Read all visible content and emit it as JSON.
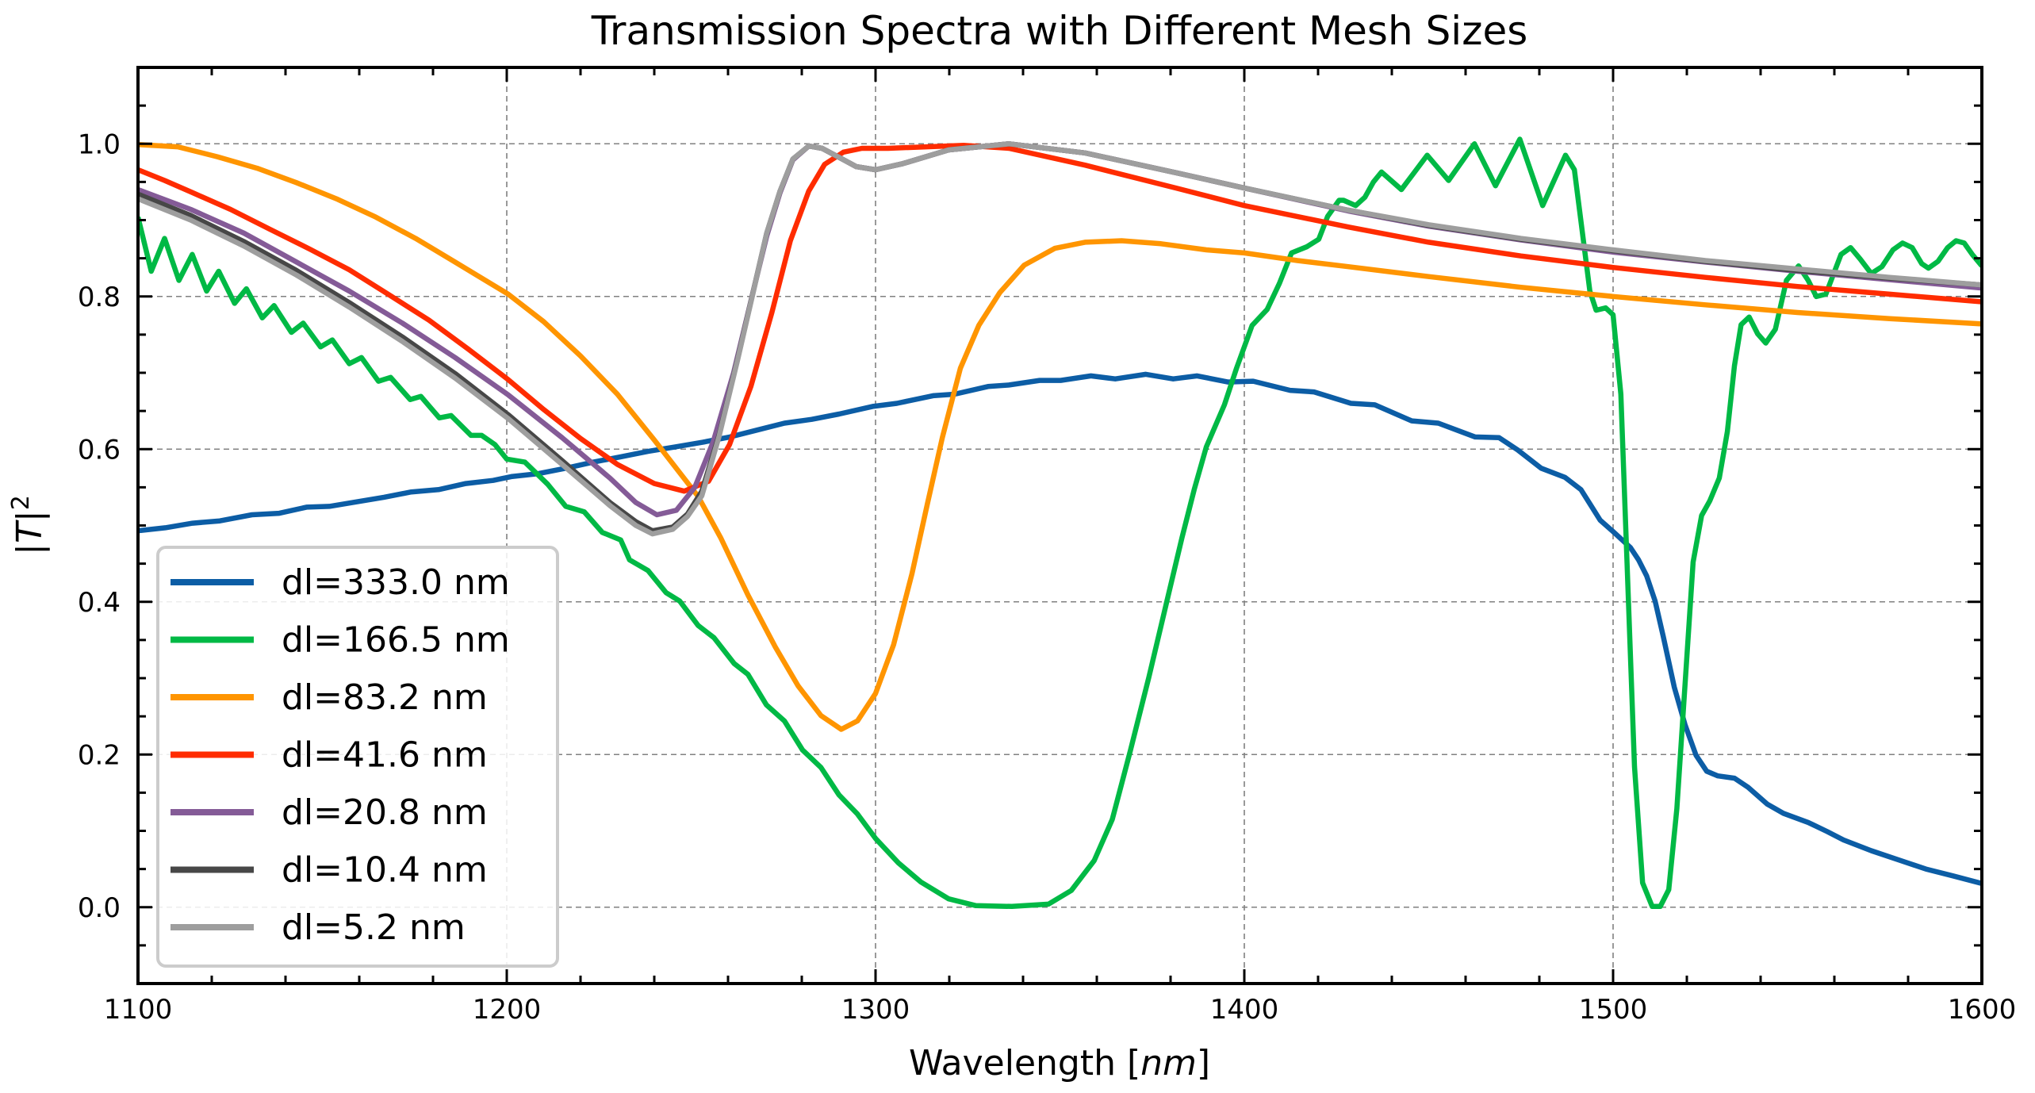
{
  "chart_data": {
    "type": "line",
    "title": "Transmission Spectra with Different Mesh Sizes",
    "xlabel": "Wavelength [nm]",
    "xlabel_parts": {
      "prefix": "Wavelength [",
      "italic": "nm",
      "suffix": "]"
    },
    "ylabel": "|T|^2",
    "ylabel_parts": {
      "bar_left": "|",
      "italic": "T",
      "bar_right": "|",
      "superscript": "2"
    },
    "xlim": [
      1100,
      1600
    ],
    "ylim": [
      -0.1,
      1.1
    ],
    "xticks": [
      1100,
      1200,
      1300,
      1400,
      1500,
      1600
    ],
    "xtick_labels": [
      "1100",
      "1200",
      "1300",
      "1400",
      "1500",
      "1600"
    ],
    "yticks": [
      0.0,
      0.2,
      0.4,
      0.6,
      0.8,
      1.0
    ],
    "ytick_labels": [
      "0.0",
      "0.2",
      "0.4",
      "0.6",
      "0.8",
      "1.0"
    ],
    "x_minor_step": 20,
    "y_minor_step": 0.05,
    "grid": true,
    "legend_position": "lower-left",
    "series": [
      {
        "name": "dl=333.0 nm",
        "color": "#0C5DA5",
        "x": [
          1100,
          1107.4,
          1114.8,
          1122.2,
          1130.9,
          1138.3,
          1145.7,
          1151.9,
          1159.3,
          1166.7,
          1174.1,
          1181.5,
          1188.9,
          1196.3,
          1201.2,
          1208.6,
          1216,
          1223.5,
          1230.9,
          1238.3,
          1245.7,
          1253.1,
          1260.5,
          1267.9,
          1275.3,
          1282.7,
          1290.1,
          1299.2,
          1305.8,
          1315.6,
          1321.4,
          1330.5,
          1336.2,
          1344.5,
          1350.2,
          1358.4,
          1365,
          1373.3,
          1380.7,
          1387.2,
          1395.5,
          1402.4,
          1412.4,
          1418.9,
          1428.9,
          1435.4,
          1445.4,
          1452.6,
          1462.6,
          1469.1,
          1474.1,
          1480.5,
          1487,
          1491.3,
          1496.5,
          1500,
          1504.7,
          1506.9,
          1509.1,
          1511.4,
          1513.6,
          1516.6,
          1519.5,
          1522.5,
          1525.4,
          1528.4,
          1532.9,
          1536.6,
          1541.8,
          1546.2,
          1552.9,
          1558.1,
          1562.5,
          1570,
          1577.4,
          1584.8,
          1592.2,
          1600
        ],
        "y": [
          0.493,
          0.497,
          0.503,
          0.506,
          0.514,
          0.516,
          0.524,
          0.525,
          0.531,
          0.537,
          0.544,
          0.547,
          0.555,
          0.559,
          0.564,
          0.568,
          0.575,
          0.583,
          0.59,
          0.597,
          0.603,
          0.609,
          0.616,
          0.625,
          0.634,
          0.639,
          0.646,
          0.656,
          0.66,
          0.67,
          0.672,
          0.682,
          0.684,
          0.69,
          0.69,
          0.696,
          0.692,
          0.698,
          0.692,
          0.696,
          0.688,
          0.689,
          0.677,
          0.675,
          0.66,
          0.658,
          0.637,
          0.634,
          0.616,
          0.615,
          0.599,
          0.575,
          0.563,
          0.547,
          0.507,
          0.492,
          0.471,
          0.455,
          0.434,
          0.401,
          0.355,
          0.288,
          0.239,
          0.199,
          0.178,
          0.172,
          0.169,
          0.157,
          0.135,
          0.123,
          0.111,
          0.099,
          0.088,
          0.074,
          0.062,
          0.05,
          0.041,
          0.031
        ]
      },
      {
        "name": "dl=166.5 nm",
        "color": "#00B945",
        "x": [
          1100,
          1103.6,
          1107.2,
          1111.1,
          1114.7,
          1118.6,
          1121.9,
          1126.2,
          1129.4,
          1133.7,
          1136.9,
          1141.6,
          1144.8,
          1149.5,
          1152.7,
          1157.3,
          1160.6,
          1165.2,
          1168.5,
          1173.8,
          1176.7,
          1181.7,
          1184.9,
          1190.3,
          1193.2,
          1196.8,
          1200,
          1204.9,
          1211.1,
          1216,
          1221,
          1225.9,
          1230.9,
          1233.3,
          1238.3,
          1243.2,
          1246.9,
          1251.9,
          1256.2,
          1261.7,
          1265.4,
          1270.4,
          1275.3,
          1280.2,
          1285.2,
          1290.1,
          1295.1,
          1300,
          1306.2,
          1312.3,
          1319.8,
          1327.2,
          1337,
          1346.9,
          1353.1,
          1359.3,
          1364.2,
          1369.1,
          1374.1,
          1379,
          1383.1,
          1386.4,
          1389.7,
          1394.6,
          1397.9,
          1402.1,
          1406.2,
          1409.5,
          1412.8,
          1416.9,
          1420.2,
          1422.6,
          1425.7,
          1426.9,
          1430.2,
          1432.7,
          1435,
          1437.2,
          1442.6,
          1449.6,
          1455.4,
          1462.4,
          1468.1,
          1474.7,
          1480.9,
          1487.1,
          1489.5,
          1493.7,
          1495.4,
          1498,
          1500,
          1502.1,
          1505.8,
          1508,
          1510.6,
          1512.8,
          1515.1,
          1517.3,
          1521.7,
          1524,
          1526.2,
          1528.8,
          1531,
          1532.9,
          1534.7,
          1536.9,
          1539.2,
          1541.4,
          1544,
          1547,
          1550.3,
          1552.9,
          1555.1,
          1557.7,
          1561.8,
          1564.4,
          1567,
          1570,
          1572.9,
          1575.9,
          1578.5,
          1581.1,
          1583.7,
          1585.5,
          1588.1,
          1590.7,
          1593,
          1595.2,
          1597.4,
          1600
        ],
        "y": [
          0.904,
          0.833,
          0.876,
          0.821,
          0.855,
          0.807,
          0.833,
          0.791,
          0.81,
          0.772,
          0.788,
          0.753,
          0.765,
          0.734,
          0.743,
          0.712,
          0.72,
          0.689,
          0.694,
          0.665,
          0.669,
          0.641,
          0.644,
          0.618,
          0.618,
          0.606,
          0.587,
          0.583,
          0.554,
          0.525,
          0.518,
          0.491,
          0.481,
          0.455,
          0.441,
          0.412,
          0.401,
          0.369,
          0.353,
          0.319,
          0.305,
          0.265,
          0.244,
          0.206,
          0.183,
          0.147,
          0.122,
          0.09,
          0.058,
          0.033,
          0.011,
          0.002,
          0.001,
          0.004,
          0.022,
          0.061,
          0.115,
          0.205,
          0.301,
          0.401,
          0.484,
          0.547,
          0.603,
          0.658,
          0.706,
          0.762,
          0.783,
          0.817,
          0.857,
          0.865,
          0.875,
          0.905,
          0.926,
          0.926,
          0.919,
          0.93,
          0.95,
          0.963,
          0.94,
          0.985,
          0.952,
          1.0,
          0.945,
          1.006,
          0.919,
          0.985,
          0.966,
          0.807,
          0.782,
          0.785,
          0.776,
          0.672,
          0.184,
          0.032,
          0.001,
          0.001,
          0.023,
          0.129,
          0.452,
          0.513,
          0.532,
          0.562,
          0.623,
          0.709,
          0.763,
          0.773,
          0.751,
          0.739,
          0.757,
          0.821,
          0.84,
          0.821,
          0.8,
          0.803,
          0.855,
          0.864,
          0.849,
          0.83,
          0.839,
          0.861,
          0.87,
          0.864,
          0.843,
          0.837,
          0.846,
          0.864,
          0.873,
          0.87,
          0.855,
          0.84
        ]
      },
      {
        "name": "dl=83.2 nm",
        "color": "#FF9500",
        "x": [
          1100,
          1110.8,
          1121.5,
          1132.3,
          1143,
          1153.8,
          1164.5,
          1175.3,
          1186,
          1193.2,
          1200.4,
          1210,
          1220,
          1230,
          1240,
          1251.9,
          1258,
          1265.4,
          1272.8,
          1279,
          1285.2,
          1290.7,
          1295.1,
          1300,
          1304.9,
          1309.9,
          1314,
          1318.1,
          1323,
          1328,
          1333.7,
          1340.3,
          1348.6,
          1356.8,
          1366.7,
          1377.4,
          1389.7,
          1400,
          1414.4,
          1428.2,
          1450,
          1475,
          1500,
          1525,
          1550,
          1575,
          1600
        ],
        "y": [
          0.999,
          0.996,
          0.983,
          0.968,
          0.949,
          0.928,
          0.904,
          0.876,
          0.845,
          0.824,
          0.803,
          0.767,
          0.722,
          0.672,
          0.612,
          0.538,
          0.484,
          0.409,
          0.341,
          0.29,
          0.251,
          0.233,
          0.244,
          0.28,
          0.344,
          0.437,
          0.527,
          0.615,
          0.706,
          0.762,
          0.805,
          0.841,
          0.863,
          0.871,
          0.873,
          0.869,
          0.861,
          0.857,
          0.847,
          0.839,
          0.826,
          0.812,
          0.8,
          0.789,
          0.779,
          0.771,
          0.764
        ]
      },
      {
        "name": "dl=41.6 nm",
        "color": "#FF2C00",
        "x": [
          1100,
          1107.2,
          1114.3,
          1125.1,
          1135.8,
          1146.6,
          1157.3,
          1168.1,
          1178.9,
          1189.6,
          1200.4,
          1210,
          1220,
          1230,
          1240,
          1248.1,
          1254.7,
          1260.4,
          1266.2,
          1271.9,
          1276.9,
          1281.9,
          1286.2,
          1291.3,
          1296.3,
          1303.4,
          1323.9,
          1336.2,
          1356.8,
          1381.5,
          1400,
          1428.2,
          1450,
          1475,
          1500,
          1525,
          1550,
          1575,
          1600
        ],
        "y": [
          0.966,
          0.952,
          0.937,
          0.914,
          0.888,
          0.862,
          0.835,
          0.802,
          0.769,
          0.731,
          0.691,
          0.652,
          0.614,
          0.58,
          0.555,
          0.545,
          0.558,
          0.606,
          0.682,
          0.779,
          0.873,
          0.938,
          0.973,
          0.989,
          0.994,
          0.994,
          0.998,
          0.994,
          0.972,
          0.942,
          0.919,
          0.891,
          0.871,
          0.853,
          0.838,
          0.825,
          0.813,
          0.803,
          0.793
        ]
      },
      {
        "name": "dl=20.8 nm",
        "color": "#845B97",
        "x": [
          1100,
          1114.3,
          1128.7,
          1143,
          1157.3,
          1171.7,
          1186,
          1200.4,
          1215,
          1228,
          1235,
          1240.7,
          1246,
          1251,
          1256,
          1261.5,
          1266.5,
          1270.5,
          1274.1,
          1277.6,
          1281.9,
          1285.5,
          1289.8,
          1294.8,
          1300,
          1307.4,
          1319.8,
          1336.2,
          1356.8,
          1381.5,
          1400,
          1428.2,
          1450,
          1475,
          1500,
          1525,
          1550,
          1575,
          1600
        ],
        "y": [
          0.94,
          0.914,
          0.883,
          0.845,
          0.807,
          0.765,
          0.72,
          0.671,
          0.615,
          0.562,
          0.53,
          0.514,
          0.52,
          0.55,
          0.61,
          0.7,
          0.8,
          0.879,
          0.936,
          0.979,
          0.997,
          0.994,
          0.983,
          0.97,
          0.966,
          0.974,
          0.992,
          1.0,
          0.988,
          0.962,
          0.942,
          0.912,
          0.892,
          0.874,
          0.858,
          0.845,
          0.833,
          0.822,
          0.811
        ]
      },
      {
        "name": "dl=10.4 nm",
        "color": "#474747",
        "x": [
          1100,
          1114.3,
          1128.7,
          1143,
          1157.3,
          1171.7,
          1186,
          1200.4,
          1215,
          1228,
          1235,
          1239.5,
          1245,
          1249,
          1252.9,
          1257.6,
          1262.6,
          1266.9,
          1270.5,
          1274.1,
          1277.6,
          1281.9,
          1285.5,
          1289.8,
          1294.8,
          1300,
          1307.4,
          1319.8,
          1336.2,
          1356.8,
          1381.5,
          1400,
          1428.2,
          1450,
          1475,
          1500,
          1525,
          1550,
          1575,
          1600
        ],
        "y": [
          0.934,
          0.906,
          0.872,
          0.834,
          0.792,
          0.747,
          0.699,
          0.645,
          0.585,
          0.53,
          0.505,
          0.493,
          0.498,
          0.515,
          0.545,
          0.619,
          0.718,
          0.808,
          0.883,
          0.938,
          0.98,
          0.997,
          0.994,
          0.983,
          0.97,
          0.966,
          0.974,
          0.992,
          1.0,
          0.988,
          0.962,
          0.942,
          0.913,
          0.893,
          0.875,
          0.86,
          0.846,
          0.834,
          0.824,
          0.815
        ]
      },
      {
        "name": "dl=5.2 nm",
        "color": "#9E9E9E",
        "x": [
          1100,
          1114.3,
          1128.7,
          1143,
          1157.3,
          1171.7,
          1186,
          1200.4,
          1215,
          1228,
          1235,
          1239.5,
          1245,
          1249,
          1252.9,
          1257.6,
          1262.6,
          1266.9,
          1270.5,
          1274.1,
          1277.6,
          1281.9,
          1285.5,
          1289.8,
          1294.8,
          1300,
          1307.4,
          1319.8,
          1336.2,
          1356.8,
          1381.5,
          1400,
          1428.2,
          1450,
          1475,
          1500,
          1525,
          1550,
          1575,
          1600
        ],
        "y": [
          0.928,
          0.9,
          0.866,
          0.828,
          0.786,
          0.741,
          0.693,
          0.64,
          0.58,
          0.526,
          0.5,
          0.489,
          0.495,
          0.512,
          0.539,
          0.617,
          0.717,
          0.807,
          0.883,
          0.938,
          0.98,
          0.997,
          0.994,
          0.983,
          0.97,
          0.966,
          0.974,
          0.992,
          1.0,
          0.988,
          0.962,
          0.942,
          0.913,
          0.894,
          0.876,
          0.861,
          0.847,
          0.836,
          0.825,
          0.815
        ]
      }
    ]
  }
}
